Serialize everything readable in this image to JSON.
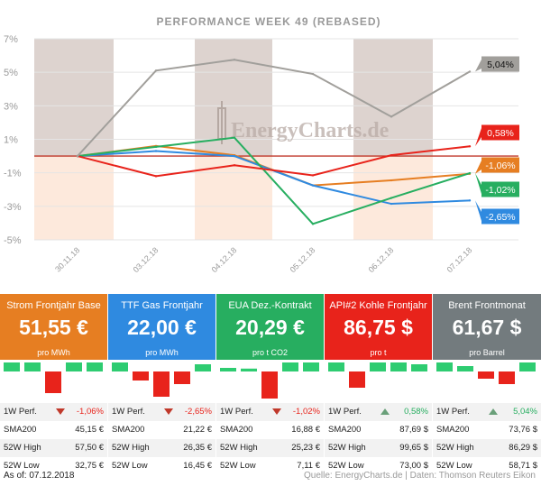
{
  "chart_data": {
    "type": "line",
    "title": "PERFORMANCE   WEEK 49 (REBASED)",
    "xlabel": "",
    "ylabel": "",
    "x": [
      "30.11.18",
      "03.12.18",
      "04.12.18",
      "05.12.18",
      "06.12.18",
      "07.12.18"
    ],
    "yticks": [
      "7%",
      "5%",
      "3%",
      "1%",
      "-1%",
      "-3%",
      "-5%"
    ],
    "ylim": [
      -5,
      7
    ],
    "grid": true,
    "watermark": "EnergyCharts.de",
    "series": [
      {
        "name": "Strom Frontjahr Base",
        "color": "#e67e22",
        "values": [
          0,
          0.6,
          0.05,
          -1.75,
          -1.45,
          -1.06
        ],
        "end_label": "-1,06%"
      },
      {
        "name": "TTF Gas Frontjahr",
        "color": "#2f8ae0",
        "values": [
          0,
          0.3,
          0.0,
          -1.75,
          -2.85,
          -2.65
        ],
        "end_label": "-2,65%"
      },
      {
        "name": "EUA Dez.-Kontrakt",
        "color": "#27ae60",
        "values": [
          0,
          0.55,
          1.1,
          -4.05,
          -2.5,
          -1.02
        ],
        "end_label": "-1,02%"
      },
      {
        "name": "API#2 Kohle Frontjahr",
        "color": "#e8231b",
        "values": [
          0,
          -1.2,
          -0.55,
          -1.15,
          0.05,
          0.58
        ],
        "end_label": "0,58%"
      },
      {
        "name": "Brent Frontmonat",
        "color": "#a19f9b",
        "values": [
          0,
          5.1,
          5.75,
          4.9,
          2.35,
          5.04
        ],
        "end_label": "5,04%"
      }
    ]
  },
  "tiles": [
    {
      "name": "Strom Frontjahr Base",
      "price": "51,55 €",
      "unit": "pro MWh",
      "color": "#e67e22",
      "bars": [
        0.35,
        0.25,
        -0.6,
        0.4,
        0.3
      ],
      "perf_label": "1W Perf.",
      "perf": "-1,06%",
      "perf_color": "#e8231b",
      "trend": "down",
      "sma_label": "SMA200",
      "sma": "45,15 €",
      "high_label": "52W High",
      "high": "57,50 €",
      "low_label": "52W Low",
      "low": "32,75 €"
    },
    {
      "name": "TTF Gas Frontjahr",
      "price": "22,00 €",
      "unit": "pro MWh",
      "color": "#2f8ae0",
      "bars": [
        0.25,
        -0.25,
        -0.7,
        -0.35,
        0.2
      ],
      "perf_label": "1W Perf.",
      "perf": "-2,65%",
      "perf_color": "#e8231b",
      "trend": "down",
      "sma_label": "SMA200",
      "sma": "21,22 €",
      "high_label": "52W High",
      "high": "26,35 €",
      "low_label": "52W Low",
      "low": "16,45 €"
    },
    {
      "name": "EUA Dez.-Kontrakt",
      "price": "20,29 €",
      "unit": "pro t CO2",
      "color": "#27ae60",
      "bars": [
        0.1,
        0.08,
        -0.75,
        0.3,
        0.3
      ],
      "perf_label": "1W Perf.",
      "perf": "-1,02%",
      "perf_color": "#e8231b",
      "trend": "down",
      "sma_label": "SMA200",
      "sma": "16,88 €",
      "high_label": "52W High",
      "high": "25,23 €",
      "low_label": "52W Low",
      "low": "7,11 €"
    },
    {
      "name": "API#2 Kohle Frontjahr",
      "price": "86,75 $",
      "unit": "pro t",
      "color": "#e8231b",
      "bars": [
        0.25,
        -0.45,
        0.25,
        0.5,
        0.2
      ],
      "perf_label": "1W Perf.",
      "perf": "0,58%",
      "perf_color": "#27ae60",
      "trend": "up",
      "sma_label": "SMA200",
      "sma": "87,69 $",
      "high_label": "52W High",
      "high": "99,65 $",
      "low_label": "52W Low",
      "low": "73,00 $"
    },
    {
      "name": "Brent Frontmonat",
      "price": "61,67 $",
      "unit": "pro Barrel",
      "color": "#737b7e",
      "bars": [
        0.6,
        0.15,
        -0.2,
        -0.35,
        0.45
      ],
      "perf_label": "1W Perf.",
      "perf": "5,04%",
      "perf_color": "#27ae60",
      "trend": "up",
      "sma_label": "SMA200",
      "sma": "73,76 $",
      "high_label": "52W High",
      "high": "86,29 $",
      "low_label": "52W Low",
      "low": "58,71 $"
    }
  ],
  "footer": {
    "asof": "As of: 07.12.2018",
    "source": "Quelle: EnergyCharts.de | Daten: Thomson Reuters Eikon"
  }
}
